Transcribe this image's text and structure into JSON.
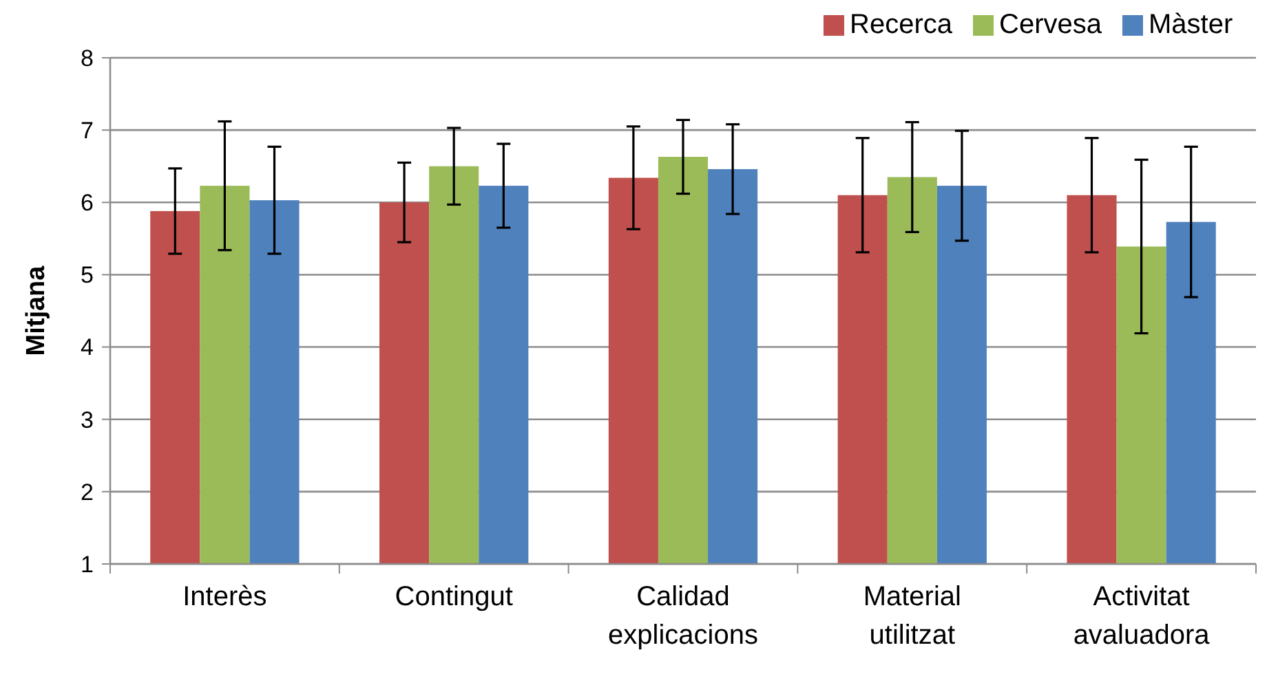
{
  "chart_data": {
    "type": "bar",
    "ylabel": "Mitjana",
    "categories": [
      "Interès",
      "Contingut",
      "Calidad explicacions",
      "Material utilitzat",
      "Activitat avaluadora"
    ],
    "series": [
      {
        "name": "Recerca",
        "color": "#c0504d",
        "values": [
          5.88,
          6.0,
          6.34,
          6.1,
          6.1
        ],
        "errors": [
          0.59,
          0.55,
          0.71,
          0.79,
          0.79
        ]
      },
      {
        "name": "Cervesa",
        "color": "#9bbb59",
        "values": [
          6.23,
          6.5,
          6.63,
          6.35,
          5.39
        ],
        "errors": [
          0.89,
          0.53,
          0.51,
          0.76,
          1.2
        ]
      },
      {
        "name": "Màster",
        "color": "#4f81bd",
        "values": [
          6.03,
          6.23,
          6.46,
          6.23,
          5.73
        ],
        "errors": [
          0.74,
          0.58,
          0.62,
          0.76,
          1.04
        ]
      }
    ],
    "ylim": [
      1,
      8
    ],
    "yticks": [
      1,
      2,
      3,
      4,
      5,
      6,
      7,
      8
    ],
    "grid": "y",
    "legend": "top right"
  }
}
